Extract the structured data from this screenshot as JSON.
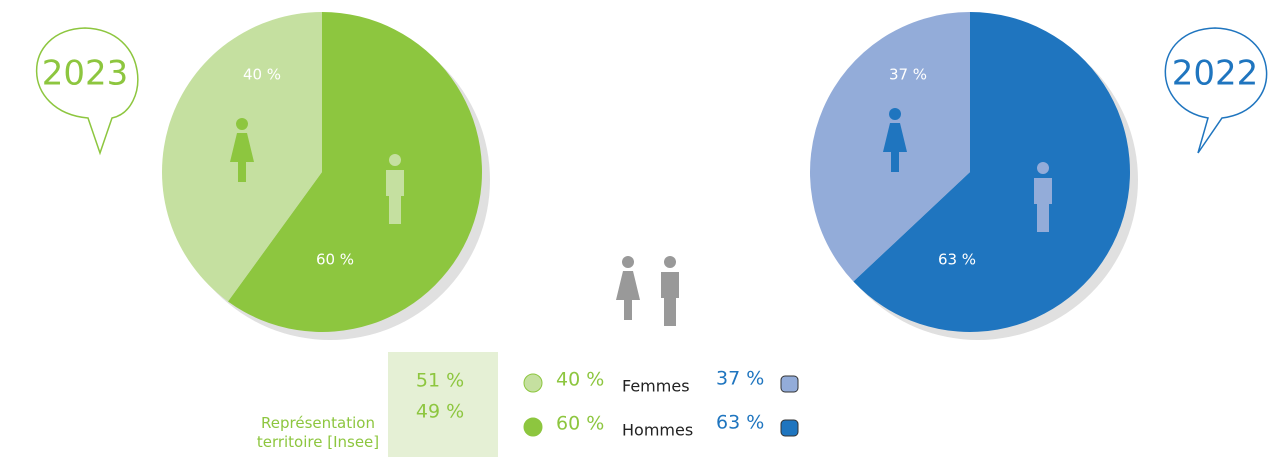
{
  "chart_data": [
    {
      "type": "pie",
      "title": "2023",
      "categories": [
        "Femmes",
        "Hommes"
      ],
      "values": [
        40,
        60
      ],
      "value_labels": [
        "40 %",
        "60 %"
      ],
      "colors": [
        "#c5e0a0",
        "#8dc63f"
      ],
      "title_color": "#8dc63f"
    },
    {
      "type": "pie",
      "title": "2022",
      "categories": [
        "Femmes",
        "Hommes"
      ],
      "values": [
        37,
        63
      ],
      "value_labels": [
        "37 %",
        "63 %"
      ],
      "colors": [
        "#93acd9",
        "#1f75bf"
      ],
      "title_color": "#1f75bf"
    }
  ],
  "reference": {
    "label": "Représentation territoire [Insee]",
    "values": [
      51,
      49
    ],
    "value_labels": [
      "51 %",
      "49 %"
    ]
  }
}
